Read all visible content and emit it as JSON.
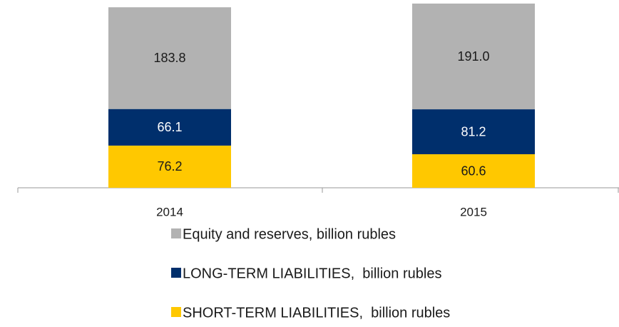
{
  "chart_data": {
    "type": "stacked_bar",
    "categories": [
      "2014",
      "2015"
    ],
    "series": [
      {
        "name": "Equity and reserves, billion rubles",
        "color": "#b2b2b2",
        "values": [
          183.8,
          191.0
        ],
        "value_labels": [
          "183.8",
          "191.0"
        ]
      },
      {
        "name": "LONG-TERM LIABILITIES,  billion rubles",
        "color": "#002f6c",
        "values": [
          66.1,
          81.2
        ],
        "value_labels": [
          "66.1",
          "81.2"
        ]
      },
      {
        "name": "SHORT-TERM LIABILITIES,  billion rubles",
        "color": "#ffc800",
        "values": [
          76.2,
          60.6
        ],
        "value_labels": [
          "76.2",
          "60.6"
        ]
      }
    ]
  }
}
